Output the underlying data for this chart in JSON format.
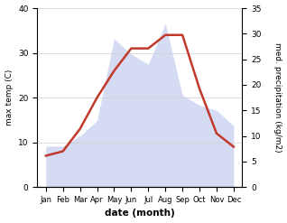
{
  "months": [
    "Jan",
    "Feb",
    "Mar",
    "Apr",
    "May",
    "Jun",
    "Jul",
    "Aug",
    "Sep",
    "Oct",
    "Nov",
    "Dec"
  ],
  "temperature": [
    7,
    8,
    13,
    20,
    26,
    31,
    31,
    34,
    34,
    22,
    12,
    9
  ],
  "precipitation": [
    8,
    8,
    10,
    13,
    29,
    26,
    24,
    32,
    18,
    16,
    15,
    12
  ],
  "temp_color": "#c0392b",
  "precip_fill_color": "#c8d0f0",
  "precip_fill_alpha": 0.75,
  "ylabel_left": "max temp (C)",
  "ylabel_right": "med. precipitation (kg/m2)",
  "xlabel": "date (month)",
  "ylim_left": [
    0,
    40
  ],
  "ylim_right": [
    0,
    35
  ],
  "yticks_left": [
    0,
    10,
    20,
    30,
    40
  ],
  "yticks_right": [
    0,
    5,
    10,
    15,
    20,
    25,
    30,
    35
  ],
  "bg_color": "#ffffff",
  "temp_linewidth": 1.8,
  "figsize": [
    3.18,
    2.47
  ],
  "dpi": 100
}
